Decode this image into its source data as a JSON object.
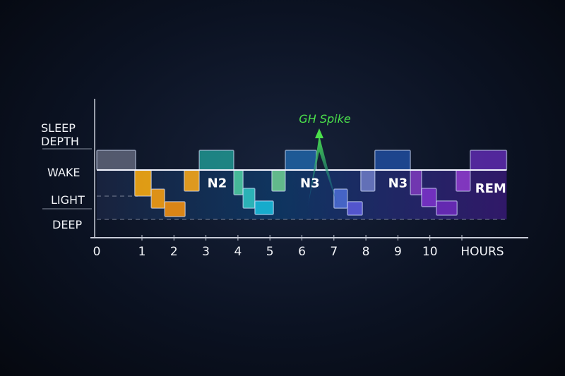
{
  "chart_data": {
    "type": "step",
    "title": "",
    "annotation": "GH Spike",
    "annotation_color": "#4be04b",
    "xlabel": "HOURS",
    "ylabel": "SLEEP DEPTH",
    "x_ticks": [
      "0",
      "1",
      "2",
      "3",
      "4",
      "5",
      "6",
      "7",
      "8",
      "9",
      "10"
    ],
    "y_levels": [
      "WAKE",
      "LIGHT",
      "DEEP"
    ],
    "stage_labels": [
      {
        "text": "N2",
        "hour": 3.35,
        "level": 1.5
      },
      {
        "text": "N3",
        "hour": 6.25,
        "level": 1.5
      },
      {
        "text": "N3",
        "hour": 9.0,
        "level": 1.5
      },
      {
        "text": "REM",
        "hour": 11.9,
        "level": 1.3
      }
    ],
    "blocks": [
      {
        "start": 0,
        "end": 0.86,
        "low": 2,
        "high": 3,
        "color": "#5b6075"
      },
      {
        "start": 0.84,
        "end": 1.29,
        "low": 1,
        "high": 2,
        "color": "#f5a80f"
      },
      {
        "start": 1.29,
        "end": 1.71,
        "low": 0.48,
        "high": 1.27,
        "color": "#f39c12"
      },
      {
        "start": 1.71,
        "end": 2.35,
        "low": 0.12,
        "high": 0.76,
        "color": "#ef8f12"
      },
      {
        "start": 2.32,
        "end": 2.79,
        "low": 1.19,
        "high": 2,
        "color": "#f5a51a"
      },
      {
        "start": 2.79,
        "end": 3.87,
        "low": 2,
        "high": 3,
        "color": "#1f8f8c"
      },
      {
        "start": 3.87,
        "end": 4.16,
        "low": 1.05,
        "high": 2,
        "color": "#4cc8a0"
      },
      {
        "start": 4.16,
        "end": 4.53,
        "low": 0.48,
        "high": 1.3,
        "color": "#2fc0c0"
      },
      {
        "start": 4.53,
        "end": 5.11,
        "low": 0.21,
        "high": 0.79,
        "color": "#18b8d8"
      },
      {
        "start": 5.06,
        "end": 5.48,
        "low": 1.19,
        "high": 2,
        "color": "#6cc890"
      },
      {
        "start": 5.48,
        "end": 6.45,
        "low": 2,
        "high": 3,
        "color": "#1f5fa0"
      },
      {
        "start": 7.0,
        "end": 7.42,
        "low": 0.48,
        "high": 1.27,
        "color": "#4a6ad0"
      },
      {
        "start": 7.42,
        "end": 7.89,
        "low": 0.18,
        "high": 0.76,
        "color": "#5a5ad8"
      },
      {
        "start": 7.84,
        "end": 8.28,
        "low": 1.19,
        "high": 2,
        "color": "#6a78c0"
      },
      {
        "start": 8.28,
        "end": 9.39,
        "low": 2,
        "high": 3,
        "color": "#1f4a98"
      },
      {
        "start": 9.39,
        "end": 9.74,
        "low": 1.05,
        "high": 2,
        "color": "#7a3ab8"
      },
      {
        "start": 9.74,
        "end": 10.2,
        "low": 0.55,
        "high": 1.3,
        "color": "#7a32c8"
      },
      {
        "start": 10.2,
        "end": 10.85,
        "low": 0.18,
        "high": 0.79,
        "color": "#6a2ab8"
      },
      {
        "start": 10.82,
        "end": 11.26,
        "low": 1.19,
        "high": 2,
        "color": "#8a3ac8"
      },
      {
        "start": 11.26,
        "end": 12.4,
        "low": 2,
        "high": 3,
        "color": "#5a2aa8"
      }
    ]
  }
}
